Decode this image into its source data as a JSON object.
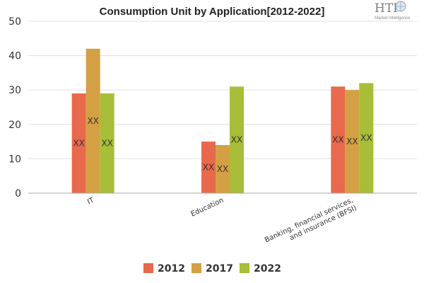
{
  "logo": {
    "main": "HTF",
    "sub": "Market Intelligence"
  },
  "chart_data": {
    "type": "bar",
    "title": "Consumption Unit by  Application[2012-2022]",
    "categories": [
      "IT",
      "Education",
      "Banking, financial services, and insurance (BFSI)"
    ],
    "category_lines": [
      [
        "IT"
      ],
      [
        "Education"
      ],
      [
        "Banking, financial services,",
        "and insurance (BFSI)"
      ]
    ],
    "series": [
      {
        "name": "2012",
        "color": "#e8694c",
        "values": [
          29,
          15,
          31
        ]
      },
      {
        "name": "2017",
        "color": "#d4a044",
        "values": [
          42,
          14,
          30
        ]
      },
      {
        "name": "2022",
        "color": "#a8bd38",
        "values": [
          29,
          31,
          32
        ]
      }
    ],
    "data_label": "XX",
    "ylim": [
      0,
      50
    ],
    "yticks": [
      0,
      10,
      20,
      30,
      40,
      50
    ],
    "xlabel": "",
    "ylabel": "",
    "grid": true,
    "legend_position": "bottom"
  }
}
